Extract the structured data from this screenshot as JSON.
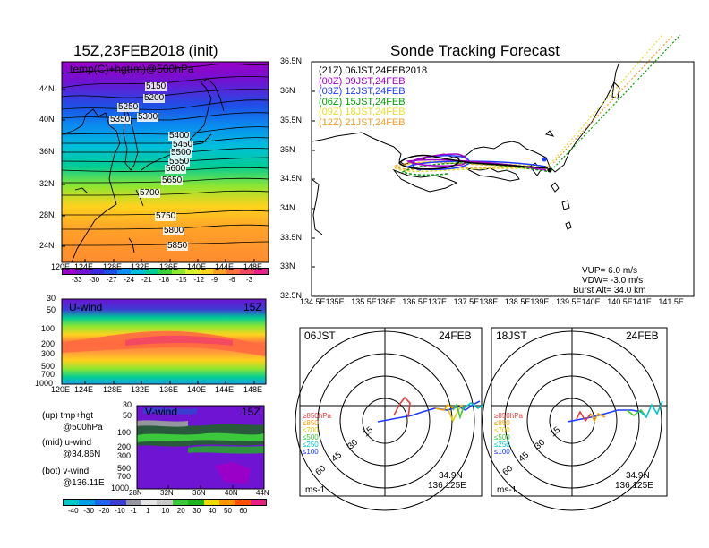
{
  "titles": {
    "left": "15Z,23FEB2018 (init)",
    "right": "Sonde Tracking Forecast"
  },
  "map500": {
    "subtitle": "temp(C)+hgt(m)@500hPa",
    "lat_labels": [
      "44N",
      "40N",
      "36N",
      "32N",
      "28N",
      "24N"
    ],
    "lon_labels": [
      "120E",
      "124E",
      "128E",
      "132E",
      "136E",
      "140E",
      "144E",
      "148E"
    ],
    "contour_labels": [
      "5150",
      "5200",
      "5250",
      "5300",
      "5350",
      "5400",
      "5450",
      "5500",
      "5550",
      "5600",
      "5650",
      "5700",
      "5750",
      "5800",
      "5850"
    ],
    "colorbar_labels": [
      "-33",
      "-30",
      "-27",
      "-24",
      "-21",
      "-18",
      "-15",
      "-12",
      "-9",
      "-6",
      "-3"
    ],
    "colorbar_colors": [
      "#9a00c8",
      "#6e14d2",
      "#3c28dc",
      "#1e50e6",
      "#0a8cf0",
      "#00bedc",
      "#00cc96",
      "#38d238",
      "#8ee632",
      "#d8f030",
      "#ffd21e",
      "#ffa028",
      "#ff7040",
      "#f04860",
      "#e8208a"
    ]
  },
  "uwind": {
    "label": "U-wind",
    "time": "15Z",
    "p_labels": [
      "30",
      "50",
      "100",
      "200",
      "300",
      "500",
      "700",
      "1000"
    ],
    "lon_labels": [
      "120E",
      "124E",
      "128E",
      "132E",
      "136E",
      "140E",
      "144E",
      "148E"
    ]
  },
  "vwind": {
    "label": "V-wind",
    "time": "15Z",
    "p_labels": [
      "30",
      "50",
      "100",
      "200",
      "300",
      "500",
      "700",
      "1000"
    ],
    "lat_labels": [
      "28N",
      "32N",
      "36N",
      "40N",
      "44N"
    ],
    "colorbar_labels": [
      "-40",
      "-30",
      "-20",
      "-10",
      "-1",
      "1",
      "10",
      "20",
      "30",
      "40",
      "50",
      "60"
    ],
    "colorbar_colors": [
      "#00c8c8",
      "#00a0e6",
      "#1e64f0",
      "#3c3cd2",
      "#9696a0",
      "#e6e6e6",
      "#c8c8c8",
      "#3cc83c",
      "#1eb41e",
      "#f0dc00",
      "#ff9600",
      "#ff5000",
      "#e61e82"
    ]
  },
  "legend_notes": [
    {
      "k": "(up) tmp+hgt",
      "v": "@500hPa"
    },
    {
      "k": "(mid) u-wind",
      "v": "@34.86N"
    },
    {
      "k": "(bot) v-wind",
      "v": "@136.11E"
    }
  ],
  "track": {
    "lat_labels": [
      "36.5N",
      "36N",
      "35.5N",
      "35N",
      "34.5N",
      "34N",
      "33.5N",
      "33N",
      "32.5N"
    ],
    "lon_labels": [
      "134.5E",
      "135E",
      "135.5E",
      "136E",
      "136.5E",
      "137E",
      "137.5E",
      "138E",
      "138.5E",
      "139E",
      "139.5E",
      "140E",
      "140.5E",
      "141E",
      "141.5E"
    ],
    "runs": [
      {
        "label": "(21Z) 06JST,24FEB2018",
        "color": "#000000"
      },
      {
        "label": "(00Z) 09JST,24FEB",
        "color": "#a000c8"
      },
      {
        "label": "(03Z) 12JST,24FEB",
        "color": "#1e3cff"
      },
      {
        "label": "(06Z) 15JST,24FEB",
        "color": "#00a000"
      },
      {
        "label": "(09Z) 18JST,24FEB",
        "color": "#e6dc32"
      },
      {
        "label": "(12Z) 21JST,24FEB",
        "color": "#f0a028"
      }
    ],
    "params": [
      "VUP=  6.0 m/s",
      "VDW= -3.0 m/s",
      "Burst Alt= 34.0 km"
    ]
  },
  "hodographs": [
    {
      "time": "06JST",
      "date": "24FEB",
      "lat": "34.9N",
      "lon": "136.125E",
      "unit": "ms-1",
      "ring_labels": [
        "15",
        "30",
        "45",
        "60"
      ],
      "levels": [
        {
          "label": "≥850hPa",
          "color": "#e63c3c"
        },
        {
          "label": "≤850",
          "color": "#f0a000"
        },
        {
          "label": "≤700",
          "color": "#e6c800"
        },
        {
          "label": "≤500",
          "color": "#3cc83c"
        },
        {
          "label": "≤250",
          "color": "#00c8c8"
        },
        {
          "label": "≤100",
          "color": "#1e3cff"
        }
      ]
    },
    {
      "time": "18JST",
      "date": "24FEB",
      "lat": "34.9N",
      "lon": "136.125E",
      "unit": "ms-1",
      "ring_labels": [
        "15",
        "30",
        "45",
        "60"
      ],
      "levels": [
        {
          "label": "≥850hPa",
          "color": "#e63c3c"
        },
        {
          "label": "≤850",
          "color": "#f0a000"
        },
        {
          "label": "≤700",
          "color": "#e6c800"
        },
        {
          "label": "≤500",
          "color": "#3cc83c"
        },
        {
          "label": "≤250",
          "color": "#00c8c8"
        },
        {
          "label": "≤100",
          "color": "#1e3cff"
        }
      ]
    }
  ]
}
